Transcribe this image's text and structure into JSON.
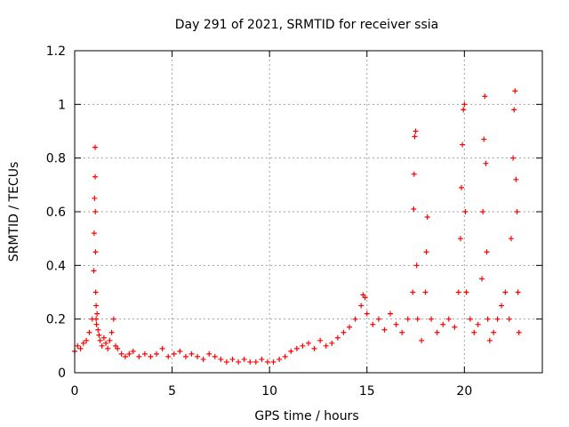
{
  "chart_data": {
    "type": "scatter",
    "title": "Day 291 of 2021, SRMTID for receiver ssia",
    "xlabel": "GPS time / hours",
    "ylabel": "SRMTID / TECUs",
    "xlim": [
      0,
      24
    ],
    "ylim": [
      0,
      1.2
    ],
    "xticks": [
      0,
      5,
      10,
      15,
      20
    ],
    "yticks": [
      0,
      0.2,
      0.4,
      0.6,
      0.8,
      1.0,
      1.2
    ],
    "xtick_labels": [
      "0",
      "5",
      "10",
      "15",
      "20"
    ],
    "ytick_labels": [
      "0",
      "0.2",
      "0.4",
      "0.6",
      "0.8",
      "1",
      "1.2"
    ],
    "grid": true,
    "marker": "+",
    "series": [
      {
        "name": "SRMTID",
        "color": "#ff0000",
        "x": [
          0.0,
          0.15,
          0.3,
          0.45,
          0.6,
          0.75,
          0.9,
          0.98,
          1.0,
          1.02,
          1.05,
          1.05,
          1.06,
          1.07,
          1.08,
          1.1,
          1.1,
          1.12,
          1.15,
          1.2,
          1.25,
          1.3,
          1.4,
          1.5,
          1.6,
          1.7,
          1.8,
          1.9,
          2.0,
          2.1,
          2.2,
          2.4,
          2.6,
          2.8,
          3.0,
          3.3,
          3.6,
          3.9,
          4.2,
          4.5,
          4.8,
          5.1,
          5.4,
          5.7,
          6.0,
          6.3,
          6.6,
          6.9,
          7.2,
          7.5,
          7.8,
          8.1,
          8.4,
          8.7,
          9.0,
          9.3,
          9.6,
          9.9,
          10.2,
          10.5,
          10.8,
          11.1,
          11.4,
          11.7,
          12.0,
          12.3,
          12.6,
          12.9,
          13.2,
          13.5,
          13.8,
          14.1,
          14.4,
          14.7,
          14.8,
          14.9,
          15.0,
          15.3,
          15.6,
          15.9,
          16.2,
          16.5,
          16.8,
          17.1,
          17.35,
          17.4,
          17.42,
          17.45,
          17.5,
          17.55,
          17.6,
          17.8,
          18.0,
          18.05,
          18.1,
          18.3,
          18.6,
          18.9,
          19.2,
          19.5,
          19.7,
          19.8,
          19.85,
          19.9,
          19.95,
          20.0,
          20.05,
          20.1,
          20.3,
          20.5,
          20.7,
          20.9,
          20.95,
          21.0,
          21.05,
          21.1,
          21.15,
          21.2,
          21.3,
          21.5,
          21.7,
          21.9,
          22.1,
          22.3,
          22.4,
          22.5,
          22.55,
          22.6,
          22.65,
          22.7,
          22.75,
          22.8
        ],
        "y": [
          0.08,
          0.1,
          0.09,
          0.11,
          0.12,
          0.15,
          0.2,
          0.38,
          0.52,
          0.65,
          0.73,
          0.84,
          0.6,
          0.45,
          0.3,
          0.25,
          0.2,
          0.18,
          0.22,
          0.16,
          0.14,
          0.12,
          0.1,
          0.13,
          0.11,
          0.09,
          0.12,
          0.15,
          0.2,
          0.1,
          0.09,
          0.07,
          0.06,
          0.07,
          0.08,
          0.06,
          0.07,
          0.06,
          0.07,
          0.09,
          0.06,
          0.07,
          0.08,
          0.06,
          0.07,
          0.06,
          0.05,
          0.07,
          0.06,
          0.05,
          0.04,
          0.05,
          0.04,
          0.05,
          0.04,
          0.04,
          0.05,
          0.04,
          0.04,
          0.05,
          0.06,
          0.08,
          0.09,
          0.1,
          0.11,
          0.09,
          0.12,
          0.1,
          0.11,
          0.13,
          0.15,
          0.17,
          0.2,
          0.25,
          0.29,
          0.28,
          0.22,
          0.18,
          0.2,
          0.16,
          0.22,
          0.18,
          0.15,
          0.2,
          0.3,
          0.61,
          0.74,
          0.88,
          0.9,
          0.4,
          0.2,
          0.12,
          0.3,
          0.45,
          0.58,
          0.2,
          0.15,
          0.18,
          0.2,
          0.17,
          0.3,
          0.5,
          0.69,
          0.85,
          0.98,
          1.0,
          0.6,
          0.3,
          0.2,
          0.15,
          0.18,
          0.35,
          0.6,
          0.87,
          1.03,
          0.78,
          0.45,
          0.2,
          0.12,
          0.15,
          0.2,
          0.25,
          0.3,
          0.2,
          0.5,
          0.8,
          0.98,
          1.05,
          0.72,
          0.6,
          0.3,
          0.15
        ]
      }
    ]
  }
}
